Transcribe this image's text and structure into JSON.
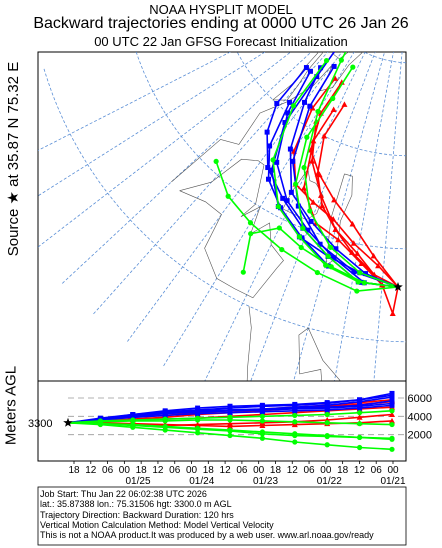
{
  "header": {
    "line1": "NOAA HYSPLIT MODEL",
    "line2": "Backward trajectories ending at 0000 UTC 26 Jan 26",
    "line3": "00 UTC 22 Jan    GFSG  Forecast Initialization"
  },
  "map": {
    "source_label": "Source ★ at  35.87 N   75.32 E",
    "lat_labels": [
      "60",
      "50",
      "40",
      "30"
    ],
    "lon_labels": [
      "30",
      "20",
      "10",
      "0",
      "10",
      "20",
      "30",
      "40",
      "50",
      "60",
      "70",
      "80",
      "90",
      "100"
    ],
    "source": {
      "lat": 35.87,
      "lon": 75.32
    }
  },
  "height_panel": {
    "ylabel": "Meters AGL",
    "start_label": "3300",
    "right_ticks": [
      "6000",
      "4000",
      "2000"
    ]
  },
  "chart_data": [
    {
      "type": "line",
      "title": "Backward trajectories ending at 0000 UTC 26 Jan 26",
      "xlabel": "Longitude",
      "ylabel": "Latitude",
      "series": [
        {
          "color": "#ff0000",
          "points": [
            [
              75.32,
              35.87
            ],
            [
              68,
              38
            ],
            [
              58,
              40
            ],
            [
              48,
              42
            ],
            [
              38,
              43
            ],
            [
              28,
              44
            ],
            [
              20,
              47
            ],
            [
              16,
              52
            ],
            [
              18,
              56
            ]
          ]
        },
        {
          "color": "#ff0000",
          "points": [
            [
              75.32,
              35.87
            ],
            [
              66,
              39
            ],
            [
              56,
              42
            ],
            [
              46,
              44
            ],
            [
              36,
              46
            ],
            [
              27,
              48
            ],
            [
              22,
              52
            ],
            [
              24,
              56
            ]
          ]
        },
        {
          "color": "#ff0000",
          "points": [
            [
              75.32,
              35.87
            ],
            [
              67,
              37
            ],
            [
              58,
              39
            ],
            [
              50,
              41
            ],
            [
              42,
              43
            ],
            [
              35,
              46
            ],
            [
              30,
              50
            ],
            [
              33,
              54
            ]
          ]
        },
        {
          "color": "#ff0000",
          "points": [
            [
              75.32,
              35.87
            ],
            [
              70,
              36
            ],
            [
              62,
              38
            ],
            [
              52,
              40
            ],
            [
              42,
              41
            ],
            [
              32,
              44
            ],
            [
              26,
              49
            ],
            [
              28,
              53
            ]
          ]
        },
        {
          "color": "#ff0000",
          "points": [
            [
              75.32,
              35.87
            ],
            [
              74,
              33
            ],
            [
              70,
              36
            ],
            [
              60,
              39
            ],
            [
              50,
              41
            ],
            [
              40,
              44
            ],
            [
              30,
              47
            ],
            [
              22,
              51
            ]
          ]
        },
        {
          "color": "#0000ff",
          "points": [
            [
              75.32,
              35.87
            ],
            [
              64,
              36
            ],
            [
              52,
              38
            ],
            [
              40,
              40
            ],
            [
              28,
              42
            ],
            [
              16,
              45
            ],
            [
              6,
              50
            ],
            [
              0,
              55
            ]
          ]
        },
        {
          "color": "#0000ff",
          "points": [
            [
              75.32,
              35.87
            ],
            [
              64,
              37
            ],
            [
              52,
              39
            ],
            [
              40,
              41
            ],
            [
              28,
              43
            ],
            [
              18,
              47
            ],
            [
              10,
              52
            ],
            [
              4,
              56
            ]
          ]
        },
        {
          "color": "#0000ff",
          "points": [
            [
              75.32,
              35.87
            ],
            [
              62,
              36
            ],
            [
              50,
              38
            ],
            [
              38,
              40
            ],
            [
              26,
              42
            ],
            [
              14,
              44
            ],
            [
              4,
              47
            ],
            [
              -2,
              50
            ],
            [
              -4,
              55
            ]
          ]
        },
        {
          "color": "#0000ff",
          "points": [
            [
              75.32,
              35.87
            ],
            [
              62,
              37
            ],
            [
              50,
              38
            ],
            [
              38,
              39
            ],
            [
              26,
              41
            ],
            [
              16,
              44
            ],
            [
              8,
              49
            ],
            [
              6,
              55
            ],
            [
              2,
              61
            ]
          ]
        },
        {
          "color": "#0000ff",
          "points": [
            [
              75.32,
              35.87
            ],
            [
              63,
              36
            ],
            [
              51,
              37
            ],
            [
              39,
              39
            ],
            [
              27,
              41
            ],
            [
              17,
              43
            ],
            [
              9,
              46
            ],
            [
              3,
              51
            ]
          ]
        },
        {
          "color": "#0000ff",
          "points": [
            [
              75.32,
              35.87
            ],
            [
              60,
              37
            ],
            [
              46,
              39
            ],
            [
              33,
              42
            ],
            [
              22,
              46
            ],
            [
              14,
              52
            ],
            [
              12,
              57
            ]
          ]
        },
        {
          "color": "#00ff00",
          "points": [
            [
              75.32,
              35.87
            ],
            [
              62,
              35
            ],
            [
              48,
              36
            ],
            [
              34,
              37
            ],
            [
              20,
              38
            ],
            [
              8,
              39
            ],
            [
              -4,
              41
            ]
          ]
        },
        {
          "color": "#00ff00",
          "points": [
            [
              75.32,
              35.87
            ],
            [
              62,
              36
            ],
            [
              50,
              37
            ],
            [
              38,
              39
            ],
            [
              26,
              41
            ],
            [
              14,
              45
            ],
            [
              6,
              51
            ],
            [
              4,
              57
            ]
          ]
        },
        {
          "color": "#00ff00",
          "points": [
            [
              75.32,
              35.87
            ],
            [
              62,
              36
            ],
            [
              50,
              38
            ],
            [
              38,
              40
            ],
            [
              28,
              44
            ],
            [
              22,
              49
            ],
            [
              24,
              54
            ],
            [
              26,
              58
            ]
          ]
        },
        {
          "color": "#00ff00",
          "points": [
            [
              75.32,
              35.87
            ],
            [
              64,
              36
            ],
            [
              52,
              37
            ],
            [
              40,
              38
            ],
            [
              30,
              39
            ],
            [
              22,
              37
            ],
            [
              26,
              33
            ]
          ]
        },
        {
          "color": "#00ff00",
          "points": [
            [
              75.32,
              35.87
            ],
            [
              62,
              37
            ],
            [
              50,
              39
            ],
            [
              38,
              42
            ],
            [
              28,
              46
            ],
            [
              20,
              52
            ],
            [
              14,
              58
            ],
            [
              6,
              63
            ]
          ]
        }
      ]
    },
    {
      "type": "line",
      "xlabel": "",
      "ylabel": "Meters AGL",
      "x_ticks": [
        "18",
        "12",
        "06",
        "00",
        "18",
        "12",
        "06",
        "00",
        "18",
        "12",
        "06",
        "00",
        "18",
        "12",
        "06",
        "00",
        "18",
        "12",
        "06",
        "00"
      ],
      "date_labels": [
        "01/25",
        "01/24",
        "01/23",
        "01/22",
        "01/21"
      ],
      "ylim": [
        0,
        7000
      ],
      "series": [
        {
          "color": "#ff0000",
          "heights": [
            3300,
            3600,
            3900,
            4100,
            4400,
            4600,
            4800,
            5000,
            5200,
            5500,
            5800
          ]
        },
        {
          "color": "#ff0000",
          "heights": [
            3300,
            3500,
            3700,
            3900,
            4200,
            4400,
            4600,
            4900,
            5100,
            5300,
            5600
          ]
        },
        {
          "color": "#ff0000",
          "heights": [
            3300,
            3300,
            3100,
            3000,
            3100,
            3200,
            3300,
            3400,
            3600,
            3900,
            4200
          ]
        },
        {
          "color": "#ff0000",
          "heights": [
            3300,
            3400,
            3600,
            3700,
            3800,
            4000,
            4200,
            4400,
            4600,
            4800,
            5000
          ]
        },
        {
          "color": "#ff0000",
          "heights": [
            3300,
            3300,
            3200,
            3100,
            3000,
            2900,
            3000,
            3100,
            3200,
            3300,
            3500
          ]
        },
        {
          "color": "#0000ff",
          "heights": [
            3300,
            3700,
            4100,
            4400,
            4600,
            4700,
            4800,
            5000,
            5200,
            5600,
            6100
          ]
        },
        {
          "color": "#0000ff",
          "heights": [
            3300,
            3800,
            4200,
            4500,
            4700,
            4900,
            5100,
            5200,
            5400,
            5800,
            6300
          ]
        },
        {
          "color": "#0000ff",
          "heights": [
            3300,
            3600,
            4000,
            4300,
            4500,
            4600,
            4700,
            4800,
            4900,
            5100,
            5400
          ]
        },
        {
          "color": "#0000ff",
          "heights": [
            3300,
            3700,
            4200,
            4600,
            4900,
            5100,
            5200,
            5300,
            5500,
            5800,
            6500
          ]
        },
        {
          "color": "#0000ff",
          "heights": [
            3300,
            3600,
            3900,
            4100,
            4300,
            4400,
            4500,
            4600,
            4700,
            4900,
            5200
          ]
        },
        {
          "color": "#0000ff",
          "heights": [
            3300,
            3700,
            4000,
            4300,
            4500,
            4600,
            4700,
            4900,
            5000,
            5200,
            5700
          ]
        },
        {
          "color": "#00ff00",
          "heights": [
            3300,
            3100,
            2800,
            2500,
            2200,
            1900,
            1600,
            1200,
            900,
            600,
            400
          ]
        },
        {
          "color": "#00ff00",
          "heights": [
            3300,
            3200,
            3000,
            2800,
            2600,
            2400,
            2100,
            1900,
            1800,
            1700,
            1600
          ]
        },
        {
          "color": "#00ff00",
          "heights": [
            3300,
            3400,
            3500,
            3500,
            3600,
            3600,
            3500,
            3400,
            3300,
            3200,
            3100
          ]
        },
        {
          "color": "#00ff00",
          "heights": [
            3300,
            3200,
            3100,
            2900,
            2700,
            2500,
            2300,
            2100,
            1900,
            1700,
            1500
          ]
        },
        {
          "color": "#00ff00",
          "heights": [
            3300,
            3500,
            3600,
            3700,
            3800,
            3900,
            4000,
            4100,
            4200,
            4400,
            4600
          ]
        }
      ]
    }
  ],
  "footer": {
    "line1": "Job Start: Thu Jan 22 06:02:38 UTC 2026",
    "line2": "lat.: 35.87388   lon.: 75.31506   hgt: 3300.0 m AGL",
    "line3": "Trajectory Direction: Backward       Duration: 120 hrs",
    "line4": "Vertical Motion Calculation Method: Model Vertical Velocity",
    "line5": "This is not a NOAA product.It was produced by a web user. www.arl.noaa.gov/ready"
  }
}
